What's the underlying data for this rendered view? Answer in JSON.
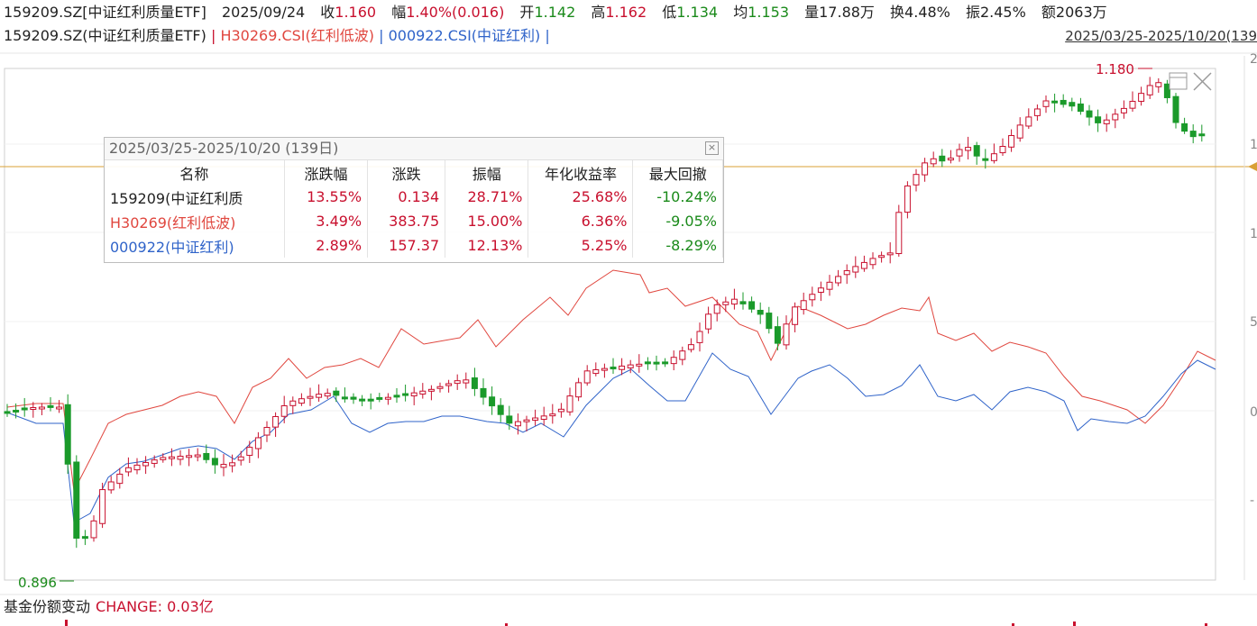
{
  "quote": {
    "code": "159209.SZ[中证红利质量ETF]",
    "date": "2025/09/24",
    "close_label": "收",
    "close": "1.160",
    "change_label": "幅",
    "change": "1.40%(0.016)",
    "open_label": "开",
    "open": "1.142",
    "high_label": "高",
    "high": "1.162",
    "low_label": "低",
    "low": "1.134",
    "avg_label": "均",
    "avg": "1.153",
    "vol_label": "量",
    "vol": "17.88万",
    "turn_label": "换",
    "turn": "4.48%",
    "amp_label": "振",
    "amp": "2.45%",
    "amt_label": "额",
    "amt": "2063万"
  },
  "legend": {
    "main": "159209.SZ(中证红利质量ETF)",
    "sep": "|",
    "idx1": "H30269.CSI(红利低波)",
    "idx2": "000922.CSI(中证红利)",
    "range": "2025/03/25-2025/10/20(139"
  },
  "colors": {
    "up": "#c8102e",
    "down": "#1a9a2a",
    "idx1": "#e0473f",
    "idx2": "#2f63c9",
    "hline": "#d9a036"
  },
  "chart": {
    "high_label": "1.180",
    "low_label": "0.896",
    "right_ticks": [
      "2",
      "1",
      "1",
      "5",
      "0",
      "-"
    ],
    "icons": [
      "maximize-icon",
      "close-icon"
    ]
  },
  "stats": {
    "title": "2025/03/25-2025/10/20 (139日)",
    "headers": [
      "名称",
      "涨跌幅",
      "涨跌",
      "振幅",
      "年化收益率",
      "最大回撤"
    ],
    "rows": [
      {
        "name": "159209(中证红利质",
        "pct": "13.55%",
        "chg": "0.134",
        "amp": "28.71%",
        "ann": "25.68%",
        "dd": "-10.24%",
        "color": "#222"
      },
      {
        "name": "H30269(红利低波)",
        "pct": "3.49%",
        "chg": "383.75",
        "amp": "15.00%",
        "ann": "6.36%",
        "dd": "-9.05%",
        "color": "#e0473f"
      },
      {
        "name": "000922(中证红利)",
        "pct": "2.89%",
        "chg": "157.37",
        "amp": "12.13%",
        "ann": "5.25%",
        "dd": "-8.29%",
        "color": "#2f63c9"
      }
    ]
  },
  "bottom": {
    "label": "基金份额变动",
    "change": "CHANGE: 0.03亿"
  }
}
